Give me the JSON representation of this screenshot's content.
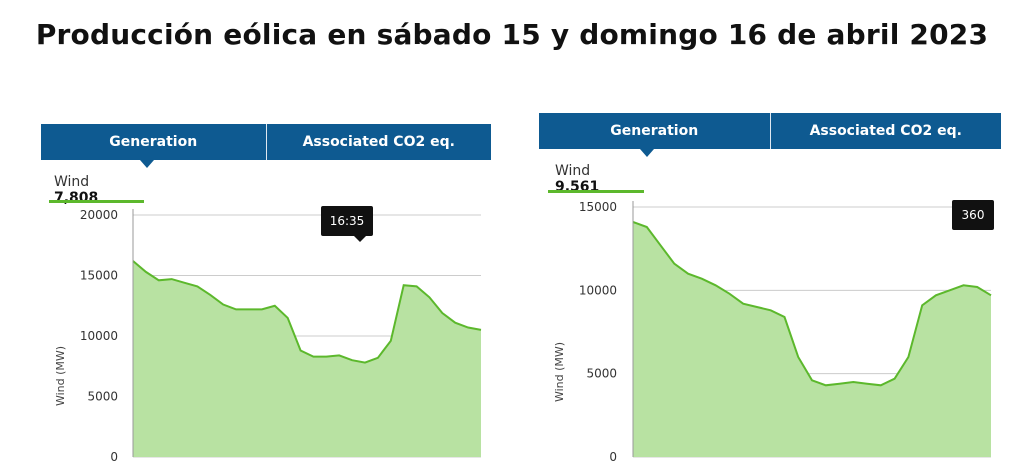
{
  "title": "Producción eólica en sábado 15 y domingo 16 de abril 2023",
  "colors": {
    "tab_bg": "#0e5a91",
    "area_fill": "#b8e2a2",
    "line": "#5cb82c",
    "grid": "#cccccc",
    "tooltip": "#111111"
  },
  "panels": [
    {
      "tab_generation": "Generation",
      "tab_co2": "Associated CO2 eq.",
      "readout_label": "Wind",
      "readout_value": "7,808",
      "tooltip": "16:35",
      "ylabel": "Wind (MW)",
      "ticks": [
        "20000",
        "15000",
        "10000",
        "5000",
        "0"
      ]
    },
    {
      "tab_generation": "Generation",
      "tab_co2": "Associated CO2 eq.",
      "readout_label": "Wind",
      "readout_value": "9,561",
      "tooltip": "360",
      "ylabel": "Wind (MW)",
      "ticks": [
        "15000",
        "10000",
        "5000",
        "0"
      ]
    }
  ],
  "chart_data": [
    {
      "type": "area",
      "title": "",
      "xlabel": "",
      "ylabel": "Wind (MW)",
      "ylim": [
        0,
        20000
      ],
      "grid": true,
      "series": [
        {
          "name": "Wind",
          "values": [
            16200,
            15300,
            14600,
            14700,
            14400,
            14100,
            13400,
            12600,
            12200,
            12200,
            12200,
            12500,
            11500,
            8800,
            8300,
            8300,
            8400,
            8000,
            7800,
            8200,
            9600,
            14200,
            14100,
            13200,
            11900,
            11100,
            10700,
            10500
          ]
        }
      ]
    },
    {
      "type": "area",
      "title": "",
      "xlabel": "",
      "ylabel": "Wind (MW)",
      "ylim": [
        0,
        15000
      ],
      "grid": true,
      "series": [
        {
          "name": "Wind",
          "values": [
            14100,
            13800,
            12700,
            11600,
            11000,
            10700,
            10300,
            9800,
            9200,
            9000,
            8800,
            8400,
            6000,
            4600,
            4300,
            4400,
            4500,
            4400,
            4300,
            4700,
            6000,
            9100,
            9700,
            10000,
            10300,
            10200,
            9700
          ]
        }
      ]
    }
  ]
}
